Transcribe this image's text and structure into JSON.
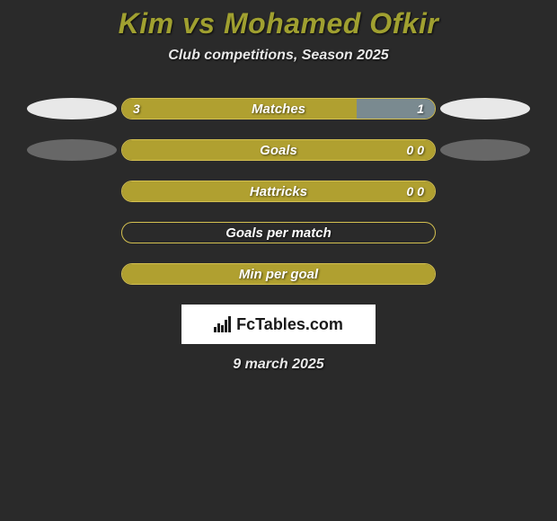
{
  "title": "Kim vs Mohamed Ofkir",
  "subtitle": "Club competitions, Season 2025",
  "date": "9 march 2025",
  "logo_text": "FcTables.com",
  "colors": {
    "background": "#2a2a2a",
    "title_color": "#a0a030",
    "text_color": "#e8e8e8",
    "bar_fill": "#b0a030",
    "bar_border": "#d4c050",
    "bar_alt_fill": "#7a8a90",
    "avatar_bg": "#e8e8e8"
  },
  "stats": [
    {
      "label": "Matches",
      "left_value": "3",
      "right_value": "1",
      "left_pct": 75,
      "right_pct": 25,
      "left_color": "#b0a030",
      "right_color": "#7a8a90",
      "show_left_avatar": true,
      "show_right_avatar": true,
      "left_avatar_dim": false,
      "right_avatar_dim": false
    },
    {
      "label": "Goals",
      "left_value": "",
      "right_value": "0 0",
      "left_pct": 100,
      "right_pct": 0,
      "left_color": "#b0a030",
      "right_color": "#b0a030",
      "show_left_avatar": true,
      "show_right_avatar": true,
      "left_avatar_dim": true,
      "right_avatar_dim": true
    },
    {
      "label": "Hattricks",
      "left_value": "",
      "right_value": "0 0",
      "left_pct": 100,
      "right_pct": 0,
      "left_color": "#b0a030",
      "right_color": "#b0a030",
      "show_left_avatar": false,
      "show_right_avatar": false,
      "left_avatar_dim": false,
      "right_avatar_dim": false
    },
    {
      "label": "Goals per match",
      "left_value": "",
      "right_value": "",
      "left_pct": 0,
      "right_pct": 0,
      "left_color": "#b0a030",
      "right_color": "#b0a030",
      "show_left_avatar": false,
      "show_right_avatar": false,
      "left_avatar_dim": false,
      "right_avatar_dim": false
    },
    {
      "label": "Min per goal",
      "left_value": "",
      "right_value": "",
      "left_pct": 100,
      "right_pct": 0,
      "left_color": "#b0a030",
      "right_color": "#b0a030",
      "show_left_avatar": false,
      "show_right_avatar": false,
      "left_avatar_dim": false,
      "right_avatar_dim": false
    }
  ]
}
